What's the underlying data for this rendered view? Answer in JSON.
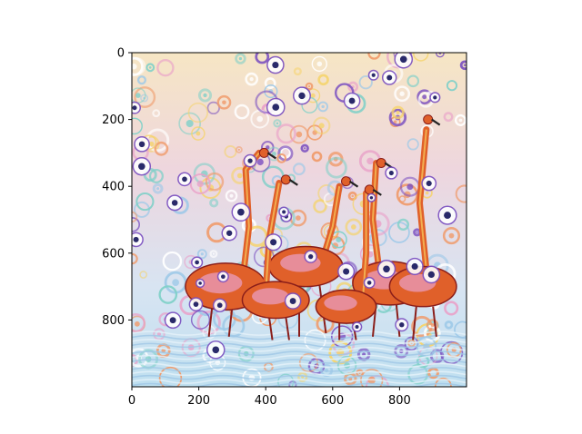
{
  "chart_data": {
    "type": "image",
    "title": "",
    "xlabel": "",
    "ylabel": "",
    "image_subject": "deep-dream style painting of flamingos wading in water",
    "image_extent": {
      "width": 1000,
      "height": 1000
    },
    "xlim": [
      0,
      1000
    ],
    "ylim": [
      1000,
      0
    ],
    "x_ticks": [
      0,
      200,
      400,
      600,
      800
    ],
    "y_ticks": [
      0,
      200,
      400,
      600,
      800
    ],
    "palette": {
      "sky": "#f3dfc5",
      "swirl_blue": "#9ec9e8",
      "swirl_pink": "#e9a1c9",
      "flamingo": "#e0602a",
      "flamingo_dark": "#8a1e1a",
      "water": "#bfe0f0",
      "accent_purple": "#7a4fc0",
      "accent_yellow": "#f5d36a"
    }
  }
}
